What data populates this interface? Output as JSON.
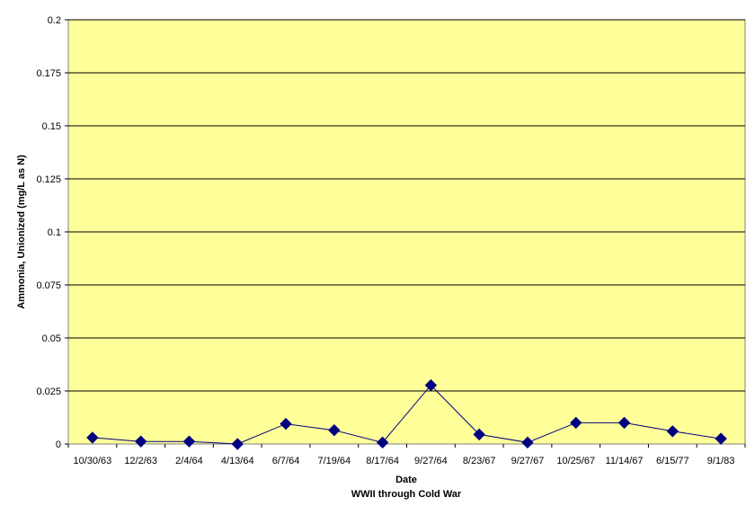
{
  "chart_data": {
    "type": "line",
    "title": "",
    "xlabel": "Date",
    "xlabel2": "WWII through Cold War",
    "ylabel": "Ammonia, Unionized (mg/L as N)",
    "ylim": [
      0,
      0.2
    ],
    "yticks": [
      "0",
      "0.025",
      "0.05",
      "0.075",
      "0.1",
      "0.125",
      "0.15",
      "0.175",
      "0.2"
    ],
    "grid": true,
    "legend": "none",
    "categories": [
      "10/30/63",
      "12/2/63",
      "2/4/64",
      "4/13/64",
      "6/7/64",
      "7/19/64",
      "8/17/64",
      "9/27/64",
      "8/23/67",
      "9/27/67",
      "10/25/67",
      "11/14/67",
      "6/15/77",
      "9/1/83"
    ],
    "series": [
      {
        "values": [
          0.003,
          0.0012,
          0.0012,
          0.0,
          0.0095,
          0.0065,
          0.0007,
          0.0277,
          0.0045,
          0.0007,
          0.01,
          0.01,
          0.006,
          0.0025
        ],
        "line_color": "#000080",
        "marker_color": "#000080",
        "marker": "diamond"
      }
    ],
    "plot_background": "#FFFF99"
  }
}
